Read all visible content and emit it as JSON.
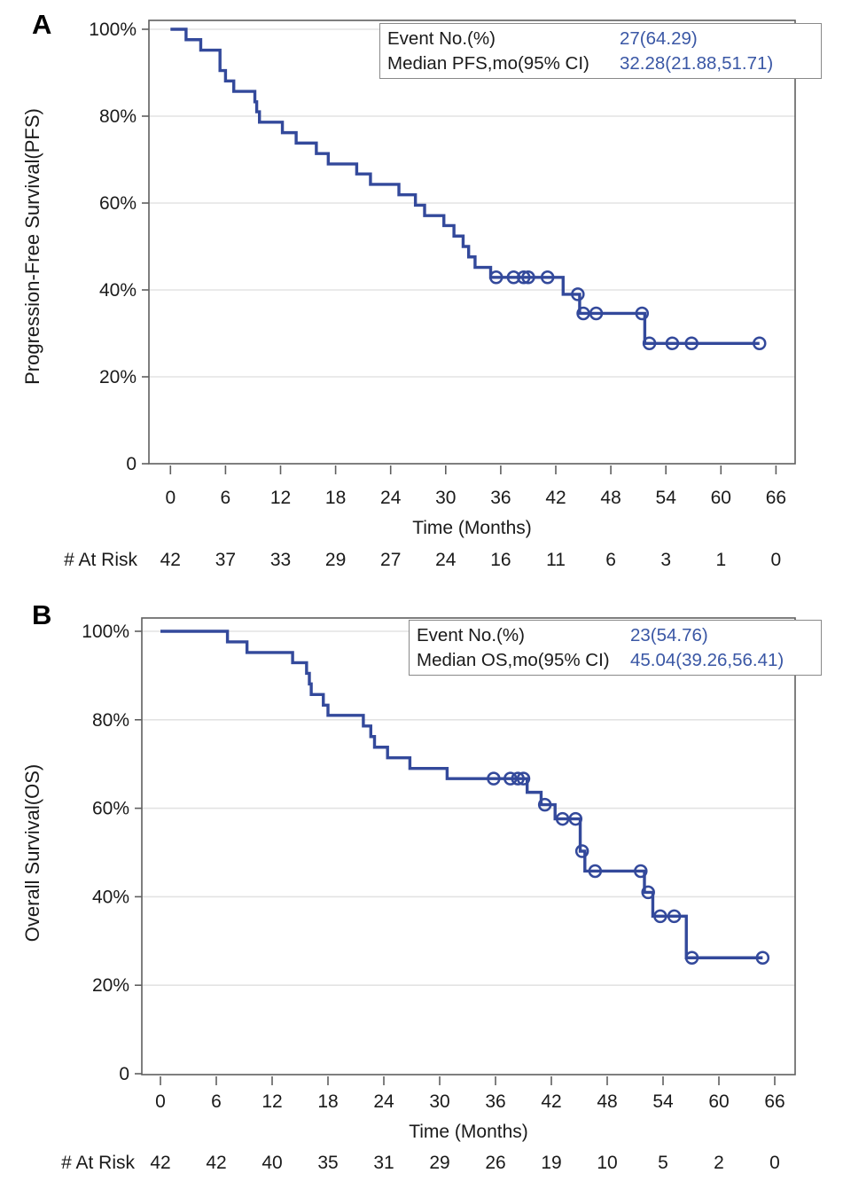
{
  "chart_data": [
    {
      "type": "line",
      "subtype": "kaplan-meier-step",
      "panel_label": "A",
      "title": "",
      "ylabel": "Progression-Free Survival(PFS)",
      "xlabel": "Time (Months)",
      "xlim": [
        0,
        68
      ],
      "ylim": [
        0,
        100
      ],
      "grid": true,
      "legend_position": "top-right",
      "line_color": "#33499B",
      "value_color": "#3A57A5",
      "x_ticks": [
        0,
        6,
        12,
        18,
        24,
        30,
        36,
        42,
        48,
        54,
        60,
        66
      ],
      "y_tick_values": [
        100,
        80,
        60,
        40,
        20,
        0
      ],
      "y_tick_labels": [
        "100%",
        "80%",
        "60%",
        "40%",
        "20%",
        "0"
      ],
      "legend": [
        {
          "label": "Event No.(%)",
          "value": "27(64.29)"
        },
        {
          "label": "Median PFS,mo(95% CI)",
          "value": "32.28(21.88,51.71)"
        }
      ],
      "at_risk_label": "# At Risk",
      "at_risk": [
        42,
        37,
        33,
        29,
        27,
        24,
        16,
        11,
        6,
        3,
        1,
        0
      ],
      "steps": [
        [
          0,
          100
        ],
        [
          1.7,
          97.6
        ],
        [
          3.3,
          95.2
        ],
        [
          5.4,
          90.5
        ],
        [
          6.0,
          88.1
        ],
        [
          6.9,
          85.7
        ],
        [
          9.2,
          83.3
        ],
        [
          9.4,
          81.0
        ],
        [
          9.7,
          78.6
        ],
        [
          12.2,
          76.2
        ],
        [
          13.7,
          73.8
        ],
        [
          15.9,
          71.4
        ],
        [
          17.2,
          69.0
        ],
        [
          20.3,
          66.7
        ],
        [
          21.8,
          64.3
        ],
        [
          24.9,
          61.9
        ],
        [
          26.7,
          59.5
        ],
        [
          27.7,
          57.1
        ],
        [
          29.8,
          54.8
        ],
        [
          30.9,
          52.4
        ],
        [
          31.9,
          50.0
        ],
        [
          32.5,
          47.6
        ],
        [
          33.2,
          45.2
        ],
        [
          34.9,
          42.9
        ],
        [
          42.8,
          39.0
        ],
        [
          44.6,
          34.6
        ],
        [
          51.7,
          27.7
        ]
      ],
      "censors": [
        [
          35.5,
          42.9
        ],
        [
          37.4,
          42.9
        ],
        [
          38.5,
          42.9
        ],
        [
          39.0,
          42.9
        ],
        [
          41.1,
          42.9
        ],
        [
          44.4,
          39.0
        ],
        [
          45.0,
          34.6
        ],
        [
          46.4,
          34.6
        ],
        [
          51.4,
          34.6
        ],
        [
          52.2,
          27.7
        ],
        [
          54.7,
          27.7
        ],
        [
          56.8,
          27.7
        ],
        [
          64.2,
          27.7
        ]
      ],
      "end_time": 64.2
    },
    {
      "type": "line",
      "subtype": "kaplan-meier-step",
      "panel_label": "B",
      "title": "",
      "ylabel": "Overall Survival(OS)",
      "xlabel": "Time (Months)",
      "xlim": [
        0,
        68
      ],
      "ylim": [
        0,
        100
      ],
      "grid": true,
      "legend_position": "top-right",
      "line_color": "#33499B",
      "value_color": "#3A57A5",
      "x_ticks": [
        0,
        6,
        12,
        18,
        24,
        30,
        36,
        42,
        48,
        54,
        60,
        66
      ],
      "y_tick_values": [
        100,
        80,
        60,
        40,
        20,
        0
      ],
      "y_tick_labels": [
        "100%",
        "80%",
        "60%",
        "40%",
        "20%",
        "0"
      ],
      "legend": [
        {
          "label": "Event No.(%)",
          "value": "23(54.76)"
        },
        {
          "label": "Median OS,mo(95% CI)",
          "value": "45.04(39.26,56.41)"
        }
      ],
      "at_risk_label": "# At Risk",
      "at_risk": [
        42,
        42,
        40,
        35,
        31,
        29,
        26,
        19,
        10,
        5,
        2,
        0
      ],
      "steps": [
        [
          0,
          100
        ],
        [
          7.2,
          97.6
        ],
        [
          9.3,
          95.2
        ],
        [
          14.2,
          92.9
        ],
        [
          15.7,
          90.5
        ],
        [
          16.0,
          88.1
        ],
        [
          16.2,
          85.7
        ],
        [
          17.5,
          83.3
        ],
        [
          18.0,
          81.0
        ],
        [
          21.8,
          78.6
        ],
        [
          22.6,
          76.2
        ],
        [
          23.0,
          73.8
        ],
        [
          24.4,
          71.4
        ],
        [
          26.8,
          69.0
        ],
        [
          30.8,
          66.7
        ],
        [
          39.4,
          63.6
        ],
        [
          40.9,
          60.8
        ],
        [
          42.4,
          57.6
        ],
        [
          45.1,
          50.3
        ],
        [
          45.6,
          45.8
        ],
        [
          52.0,
          41.0
        ],
        [
          52.9,
          35.6
        ],
        [
          56.5,
          26.2
        ]
      ],
      "censors": [
        [
          35.8,
          66.7
        ],
        [
          37.6,
          66.7
        ],
        [
          38.4,
          66.7
        ],
        [
          39.0,
          66.7
        ],
        [
          41.3,
          60.8
        ],
        [
          43.2,
          57.6
        ],
        [
          44.6,
          57.6
        ],
        [
          45.3,
          50.3
        ],
        [
          46.7,
          45.8
        ],
        [
          51.6,
          45.8
        ],
        [
          52.4,
          41.0
        ],
        [
          53.7,
          35.6
        ],
        [
          55.2,
          35.6
        ],
        [
          57.1,
          26.2
        ],
        [
          64.7,
          26.2
        ]
      ],
      "end_time": 64.7
    }
  ]
}
